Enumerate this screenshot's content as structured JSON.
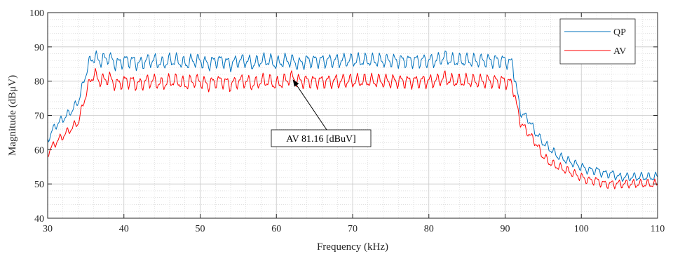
{
  "chart_data": {
    "type": "line",
    "title": "",
    "xlabel": "Frequency (kHz)",
    "ylabel": "Magnitude (dBμV)",
    "xlim": [
      30,
      110
    ],
    "ylim": [
      40,
      100
    ],
    "xticks": [
      30,
      40,
      50,
      60,
      70,
      80,
      90,
      100,
      110
    ],
    "yticks": [
      40,
      50,
      60,
      70,
      80,
      90,
      100
    ],
    "grid": true,
    "minor_grid": true,
    "legend_position": "top-right",
    "series": [
      {
        "name": "QP",
        "color": "#0072BD",
        "x": [
          30,
          31,
          32,
          33,
          34,
          35,
          35.5,
          36,
          37,
          38,
          39,
          40,
          41,
          42,
          43,
          44,
          45,
          46,
          47,
          48,
          49,
          50,
          51,
          52,
          53,
          54,
          55,
          56,
          57,
          58,
          59,
          60,
          61,
          62,
          63,
          64,
          65,
          66,
          67,
          68,
          69,
          70,
          71,
          72,
          73,
          74,
          75,
          76,
          77,
          78,
          79,
          80,
          81,
          82,
          83,
          84,
          85,
          86,
          87,
          88,
          89,
          90,
          91,
          91.5,
          92,
          93,
          94,
          95,
          96,
          97,
          98,
          99,
          100,
          101,
          102,
          103,
          104,
          105,
          106,
          107,
          108,
          109,
          110
        ],
        "values": [
          63,
          67,
          69,
          71,
          74,
          82,
          86,
          87,
          86,
          87,
          85,
          86,
          86,
          85,
          86,
          86,
          85,
          86,
          86,
          85,
          86,
          86,
          85,
          86,
          86,
          85,
          86,
          86,
          85,
          86,
          86,
          85,
          86,
          86,
          85,
          86,
          86,
          86,
          86,
          86,
          86,
          86,
          86,
          86,
          86,
          86,
          86,
          86,
          86,
          86,
          86,
          86,
          86,
          87,
          86,
          86,
          86,
          86,
          86,
          86,
          86,
          86,
          85,
          78,
          71,
          69,
          65,
          62,
          60,
          58,
          57,
          56,
          55,
          54,
          54,
          53,
          53,
          52,
          52,
          52,
          52,
          52,
          52
        ]
      },
      {
        "name": "AV",
        "color": "#FF0000",
        "x": [
          30,
          31,
          32,
          33,
          34,
          35,
          35.5,
          36,
          37,
          38,
          39,
          40,
          41,
          42,
          43,
          44,
          45,
          46,
          47,
          48,
          49,
          50,
          51,
          52,
          53,
          54,
          55,
          56,
          57,
          58,
          59,
          60,
          61,
          62,
          63,
          64,
          65,
          66,
          67,
          68,
          69,
          70,
          71,
          72,
          73,
          74,
          75,
          76,
          77,
          78,
          79,
          80,
          81,
          82,
          83,
          84,
          85,
          86,
          87,
          88,
          89,
          90,
          91,
          91.5,
          92,
          93,
          94,
          95,
          96,
          97,
          98,
          99,
          100,
          101,
          102,
          103,
          104,
          105,
          106,
          107,
          108,
          109,
          110
        ],
        "values": [
          59,
          62,
          64,
          66,
          68,
          76,
          80,
          82,
          80,
          81,
          79,
          80,
          80,
          79,
          80,
          80,
          79,
          80,
          80,
          79,
          80,
          80,
          79,
          80,
          80,
          79,
          80,
          80,
          79,
          80,
          80,
          79,
          80,
          81,
          80,
          80,
          80,
          80,
          80,
          80,
          80,
          80,
          80,
          80,
          80,
          80,
          80,
          80,
          80,
          80,
          80,
          80,
          80,
          81,
          80,
          80,
          80,
          80,
          80,
          80,
          80,
          80,
          79,
          73,
          68,
          65,
          62,
          58,
          56,
          55,
          54,
          53,
          52,
          51,
          51,
          50,
          50,
          50,
          50,
          50,
          50,
          50,
          50
        ]
      }
    ],
    "annotation": {
      "text": "AV 81.16 [dBuV]",
      "x": 62.2,
      "y": 81.16
    }
  }
}
